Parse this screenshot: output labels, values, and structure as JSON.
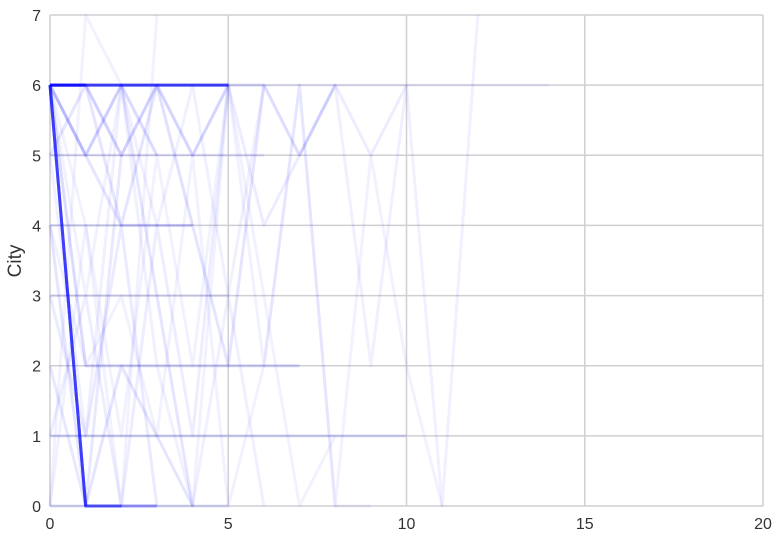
{
  "chart_data": {
    "type": "line",
    "title": "",
    "xlabel": "",
    "ylabel": "City",
    "xlim": [
      0,
      20
    ],
    "ylim": [
      0,
      7
    ],
    "xticks": [
      0,
      5,
      10,
      15,
      20
    ],
    "yticks": [
      0,
      1,
      2,
      3,
      4,
      5,
      6,
      7
    ],
    "xtick_labels": [
      "0",
      "5",
      "10",
      "15",
      "20"
    ],
    "ytick_labels": [
      "0",
      "1",
      "2",
      "3",
      "4",
      "5",
      "6",
      "7"
    ],
    "grid": true,
    "legend": "none",
    "line_color": "#0000ff",
    "note_opacity": "many overlapping semi-transparent trajectories",
    "series": [
      {
        "x": [
          0,
          1,
          2,
          3,
          4,
          5
        ],
        "y": [
          6,
          6,
          6,
          6,
          6,
          6
        ],
        "opacity": 0.55
      },
      {
        "x": [
          0,
          1,
          2,
          3,
          4,
          5
        ],
        "y": [
          6,
          6,
          6,
          6,
          6,
          6
        ],
        "opacity": 0.3
      },
      {
        "x": [
          0,
          1
        ],
        "y": [
          6,
          6
        ],
        "opacity": 0.6
      },
      {
        "x": [
          0,
          1,
          2
        ],
        "y": [
          6,
          0,
          0
        ],
        "opacity": 0.45
      },
      {
        "x": [
          0,
          1,
          2,
          3
        ],
        "y": [
          6,
          0,
          0,
          0
        ],
        "opacity": 0.3
      },
      {
        "x": [
          0,
          1
        ],
        "y": [
          6,
          0
        ],
        "opacity": 0.35
      },
      {
        "x": [
          0,
          1,
          2,
          3
        ],
        "y": [
          6,
          5,
          6,
          5
        ],
        "opacity": 0.14
      },
      {
        "x": [
          0,
          1,
          2,
          3,
          4
        ],
        "y": [
          6,
          6,
          5,
          6,
          4
        ],
        "opacity": 0.12
      },
      {
        "x": [
          0,
          1,
          2,
          3,
          4,
          5
        ],
        "y": [
          5,
          6,
          4,
          6,
          5,
          6
        ],
        "opacity": 0.1
      },
      {
        "x": [
          0,
          1,
          2,
          3,
          4,
          5,
          6
        ],
        "y": [
          6,
          5,
          4,
          4,
          4,
          2,
          6
        ],
        "opacity": 0.1
      },
      {
        "x": [
          0,
          1,
          2,
          3,
          4,
          5,
          6,
          7
        ],
        "y": [
          6,
          2,
          2,
          2,
          2,
          2,
          2,
          2
        ],
        "opacity": 0.14
      },
      {
        "x": [
          0,
          1,
          2,
          3,
          4,
          5,
          6,
          7,
          8,
          9,
          10
        ],
        "y": [
          1,
          1,
          1,
          1,
          1,
          1,
          1,
          1,
          1,
          1,
          1
        ],
        "opacity": 0.12
      },
      {
        "x": [
          0,
          1,
          2,
          3,
          4,
          5,
          6,
          7,
          8
        ],
        "y": [
          6,
          6,
          6,
          6,
          6,
          6,
          6,
          5,
          6
        ],
        "opacity": 0.08
      },
      {
        "x": [
          0,
          1,
          2,
          3,
          4,
          5,
          6,
          7,
          8,
          9,
          10,
          11,
          12
        ],
        "y": [
          6,
          5,
          6,
          4,
          6,
          3,
          6,
          5,
          6,
          2,
          6,
          0,
          7
        ],
        "opacity": 0.06
      },
      {
        "x": [
          0,
          1,
          2,
          3,
          4,
          5,
          6,
          7,
          8,
          9,
          10
        ],
        "y": [
          6,
          6,
          5,
          6,
          5,
          6,
          4,
          5,
          6,
          5,
          6
        ],
        "opacity": 0.07
      },
      {
        "x": [
          0,
          1,
          2,
          3,
          4,
          5,
          6,
          7,
          8,
          9,
          10,
          11,
          12,
          13,
          14
        ],
        "y": [
          6,
          6,
          6,
          6,
          6,
          6,
          6,
          6,
          6,
          6,
          6,
          6,
          6,
          6,
          6
        ],
        "opacity": 0.05
      },
      {
        "x": [
          0,
          1,
          2,
          3,
          4
        ],
        "y": [
          4,
          0,
          2,
          1,
          0
        ],
        "opacity": 0.1
      },
      {
        "x": [
          0,
          1,
          2,
          3
        ],
        "y": [
          3,
          1,
          4,
          0
        ],
        "opacity": 0.08
      },
      {
        "x": [
          0,
          1,
          2
        ],
        "y": [
          2,
          0,
          5
        ],
        "opacity": 0.09
      },
      {
        "x": [
          0,
          1,
          2,
          3,
          4,
          5
        ],
        "y": [
          1,
          3,
          0,
          4,
          1,
          6
        ],
        "opacity": 0.07
      },
      {
        "x": [
          0,
          1,
          2,
          3,
          4,
          5,
          6
        ],
        "y": [
          5,
          1,
          6,
          2,
          0,
          3,
          0
        ],
        "opacity": 0.06
      },
      {
        "x": [
          0,
          1,
          2,
          3,
          4,
          5,
          6,
          7,
          8
        ],
        "y": [
          0,
          4,
          1,
          5,
          2,
          6,
          3,
          0,
          1
        ],
        "opacity": 0.05
      },
      {
        "x": [
          0,
          1,
          2,
          3
        ],
        "y": [
          6,
          4,
          0,
          7
        ],
        "opacity": 0.05
      },
      {
        "x": [
          0,
          1,
          2,
          3,
          4
        ],
        "y": [
          0,
          7,
          6,
          3,
          0
        ],
        "opacity": 0.05
      },
      {
        "x": [
          0,
          1,
          2,
          3,
          4,
          5,
          6,
          7,
          8,
          9
        ],
        "y": [
          4,
          2,
          3,
          1,
          5,
          0,
          2,
          6,
          0,
          0
        ],
        "opacity": 0.05
      },
      {
        "x": [
          0,
          1,
          2,
          3,
          4,
          5,
          6,
          7,
          8,
          9,
          10,
          11
        ],
        "y": [
          6,
          3,
          6,
          3,
          0,
          6,
          2,
          6,
          0,
          5,
          2,
          0
        ],
        "opacity": 0.05
      },
      {
        "x": [
          0,
          1,
          2,
          3,
          4,
          5
        ],
        "y": [
          3,
          3,
          3,
          3,
          3,
          3
        ],
        "opacity": 0.08
      },
      {
        "x": [
          0,
          1,
          2,
          3,
          4
        ],
        "y": [
          4,
          4,
          4,
          4,
          4
        ],
        "opacity": 0.09
      },
      {
        "x": [
          0,
          1,
          2,
          3,
          4,
          5,
          6
        ],
        "y": [
          5,
          5,
          5,
          5,
          5,
          5,
          5
        ],
        "opacity": 0.08
      },
      {
        "x": [
          0,
          1,
          2,
          3,
          4,
          5
        ],
        "y": [
          0,
          0,
          0,
          0,
          0,
          0
        ],
        "opacity": 0.1
      }
    ]
  }
}
